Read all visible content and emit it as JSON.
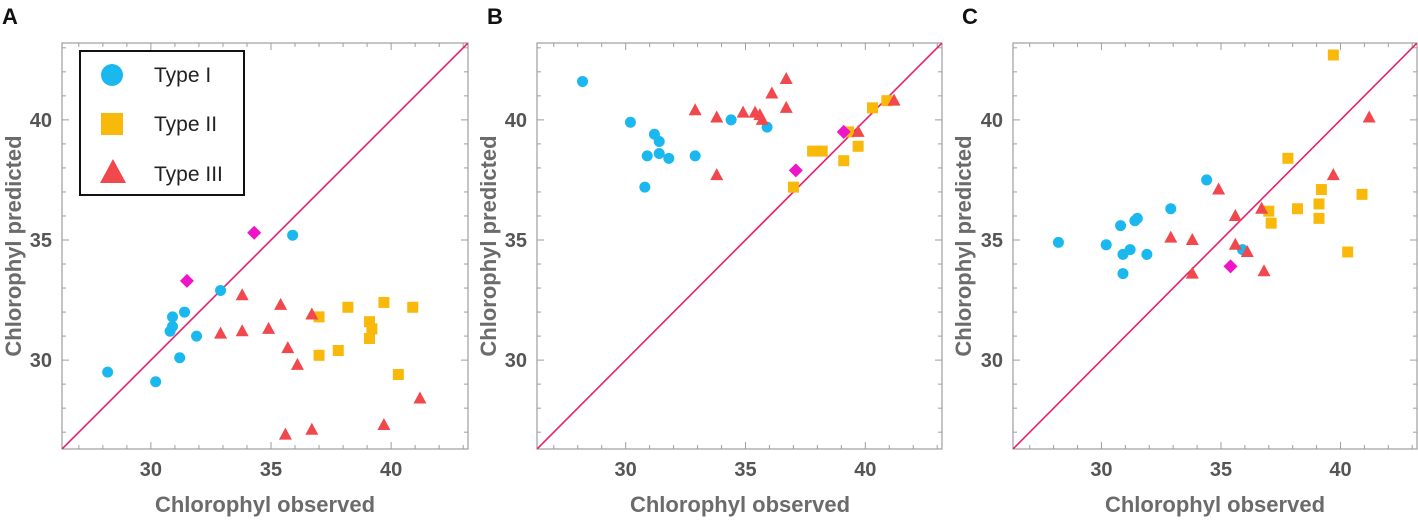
{
  "figure": {
    "colors": {
      "type1": "#1ab8ee",
      "type2": "#f8b90a",
      "type3": "#f0484c",
      "highlight": "#ee14c8",
      "reference_line": "#e6206e",
      "frame": "#9e9e9e"
    }
  },
  "chart_data": [
    {
      "panel": "A",
      "type": "scatter",
      "xlabel": "Chlorophyl observed",
      "ylabel": "Chlorophyl predicted",
      "xlim": [
        26.3,
        43.2
      ],
      "ylim": [
        26.3,
        43.2
      ],
      "xticks": [
        30,
        35,
        40
      ],
      "yticks": [
        30,
        35,
        40
      ],
      "reference_line": "y = x",
      "legend": {
        "position": "top-left",
        "entries": [
          {
            "label": "Type I",
            "marker": "circle",
            "series": "type1"
          },
          {
            "label": "Type II",
            "marker": "square",
            "series": "type2"
          },
          {
            "label": "Type III",
            "marker": "triangle",
            "series": "type3"
          }
        ]
      },
      "series": [
        {
          "name": "Type I",
          "key": "type1",
          "marker": "circle",
          "points": [
            [
              28.2,
              29.5
            ],
            [
              30.2,
              29.1
            ],
            [
              30.9,
              31.8
            ],
            [
              30.8,
              31.2
            ],
            [
              30.9,
              31.4
            ],
            [
              31.2,
              30.1
            ],
            [
              31.4,
              32.0
            ],
            [
              31.9,
              31.0
            ],
            [
              32.9,
              32.9
            ],
            [
              35.9,
              35.2
            ]
          ]
        },
        {
          "name": "Type II",
          "key": "type2",
          "marker": "square",
          "points": [
            [
              37.0,
              31.8
            ],
            [
              37.0,
              30.2
            ],
            [
              37.8,
              30.4
            ],
            [
              38.2,
              32.2
            ],
            [
              39.1,
              31.6
            ],
            [
              39.2,
              31.3
            ],
            [
              39.1,
              30.9
            ],
            [
              39.7,
              32.4
            ],
            [
              40.9,
              32.2
            ],
            [
              40.3,
              29.4
            ]
          ]
        },
        {
          "name": "Type III",
          "key": "type3",
          "marker": "triangle",
          "points": [
            [
              32.9,
              31.1
            ],
            [
              33.8,
              32.7
            ],
            [
              33.8,
              31.2
            ],
            [
              34.9,
              31.3
            ],
            [
              35.4,
              32.3
            ],
            [
              35.7,
              30.5
            ],
            [
              36.1,
              29.8
            ],
            [
              36.7,
              31.9
            ],
            [
              35.6,
              26.9
            ],
            [
              36.7,
              27.1
            ],
            [
              39.7,
              27.3
            ],
            [
              41.2,
              28.4
            ]
          ]
        },
        {
          "name": "highlight",
          "key": "highlight",
          "marker": "diamond",
          "points": [
            [
              31.5,
              33.3
            ],
            [
              34.3,
              35.3
            ]
          ]
        }
      ]
    },
    {
      "panel": "B",
      "type": "scatter",
      "xlabel": "Chlorophyl observed",
      "ylabel": "Chlorophyl predicted",
      "xlim": [
        26.3,
        43.2
      ],
      "ylim": [
        26.3,
        43.2
      ],
      "xticks": [
        30,
        35,
        40
      ],
      "yticks": [
        30,
        35,
        40
      ],
      "reference_line": "y = x",
      "series": [
        {
          "name": "Type I",
          "key": "type1",
          "marker": "circle",
          "points": [
            [
              28.2,
              41.6
            ],
            [
              30.2,
              39.9
            ],
            [
              30.8,
              37.2
            ],
            [
              30.9,
              38.5
            ],
            [
              31.2,
              39.4
            ],
            [
              31.4,
              39.1
            ],
            [
              31.4,
              38.6
            ],
            [
              31.8,
              38.4
            ],
            [
              32.9,
              38.5
            ],
            [
              34.4,
              40.0
            ],
            [
              35.9,
              39.7
            ]
          ]
        },
        {
          "name": "Type II",
          "key": "type2",
          "marker": "square",
          "points": [
            [
              37.0,
              37.2
            ],
            [
              37.8,
              38.7
            ],
            [
              38.2,
              38.7
            ],
            [
              39.1,
              38.3
            ],
            [
              39.7,
              38.9
            ],
            [
              40.3,
              40.5
            ],
            [
              40.9,
              40.8
            ],
            [
              39.3,
              39.5
            ]
          ]
        },
        {
          "name": "Type III",
          "key": "type3",
          "marker": "triangle",
          "points": [
            [
              32.9,
              40.4
            ],
            [
              33.8,
              40.1
            ],
            [
              33.8,
              37.7
            ],
            [
              34.9,
              40.3
            ],
            [
              35.4,
              40.3
            ],
            [
              35.7,
              40.0
            ],
            [
              35.6,
              40.2
            ],
            [
              36.1,
              41.1
            ],
            [
              36.7,
              41.7
            ],
            [
              36.7,
              40.5
            ],
            [
              39.7,
              39.5
            ],
            [
              41.2,
              40.8
            ]
          ]
        },
        {
          "name": "highlight",
          "key": "highlight",
          "marker": "diamond",
          "points": [
            [
              37.1,
              37.9
            ],
            [
              39.1,
              39.5
            ]
          ]
        }
      ]
    },
    {
      "panel": "C",
      "type": "scatter",
      "xlabel": "Chlorophyl observed",
      "ylabel": "Chlorophyl predicted",
      "xlim": [
        26.3,
        43.2
      ],
      "ylim": [
        26.3,
        43.2
      ],
      "xticks": [
        30,
        35,
        40
      ],
      "yticks": [
        30,
        35,
        40
      ],
      "reference_line": "y = x",
      "series": [
        {
          "name": "Type I",
          "key": "type1",
          "marker": "circle",
          "points": [
            [
              28.2,
              34.9
            ],
            [
              30.2,
              34.8
            ],
            [
              30.8,
              35.6
            ],
            [
              30.9,
              34.4
            ],
            [
              30.9,
              33.6
            ],
            [
              31.2,
              34.6
            ],
            [
              31.4,
              35.8
            ],
            [
              31.5,
              35.9
            ],
            [
              31.9,
              34.4
            ],
            [
              32.9,
              36.3
            ],
            [
              34.4,
              37.5
            ],
            [
              35.9,
              34.6
            ]
          ]
        },
        {
          "name": "Type II",
          "key": "type2",
          "marker": "square",
          "points": [
            [
              37.0,
              36.2
            ],
            [
              37.1,
              35.7
            ],
            [
              37.8,
              38.4
            ],
            [
              38.2,
              36.3
            ],
            [
              39.1,
              35.9
            ],
            [
              39.1,
              36.5
            ],
            [
              39.2,
              37.1
            ],
            [
              39.7,
              42.7
            ],
            [
              40.3,
              34.5
            ],
            [
              40.9,
              36.9
            ]
          ]
        },
        {
          "name": "Type III",
          "key": "type3",
          "marker": "triangle",
          "points": [
            [
              32.9,
              35.1
            ],
            [
              33.8,
              35.0
            ],
            [
              33.8,
              33.6
            ],
            [
              34.9,
              37.1
            ],
            [
              35.6,
              36.0
            ],
            [
              35.6,
              34.8
            ],
            [
              36.1,
              34.5
            ],
            [
              36.7,
              36.3
            ],
            [
              36.8,
              33.7
            ],
            [
              39.7,
              37.7
            ],
            [
              41.2,
              40.1
            ]
          ]
        },
        {
          "name": "highlight",
          "key": "highlight",
          "marker": "diamond",
          "points": [
            [
              35.4,
              33.9
            ]
          ]
        }
      ]
    }
  ]
}
